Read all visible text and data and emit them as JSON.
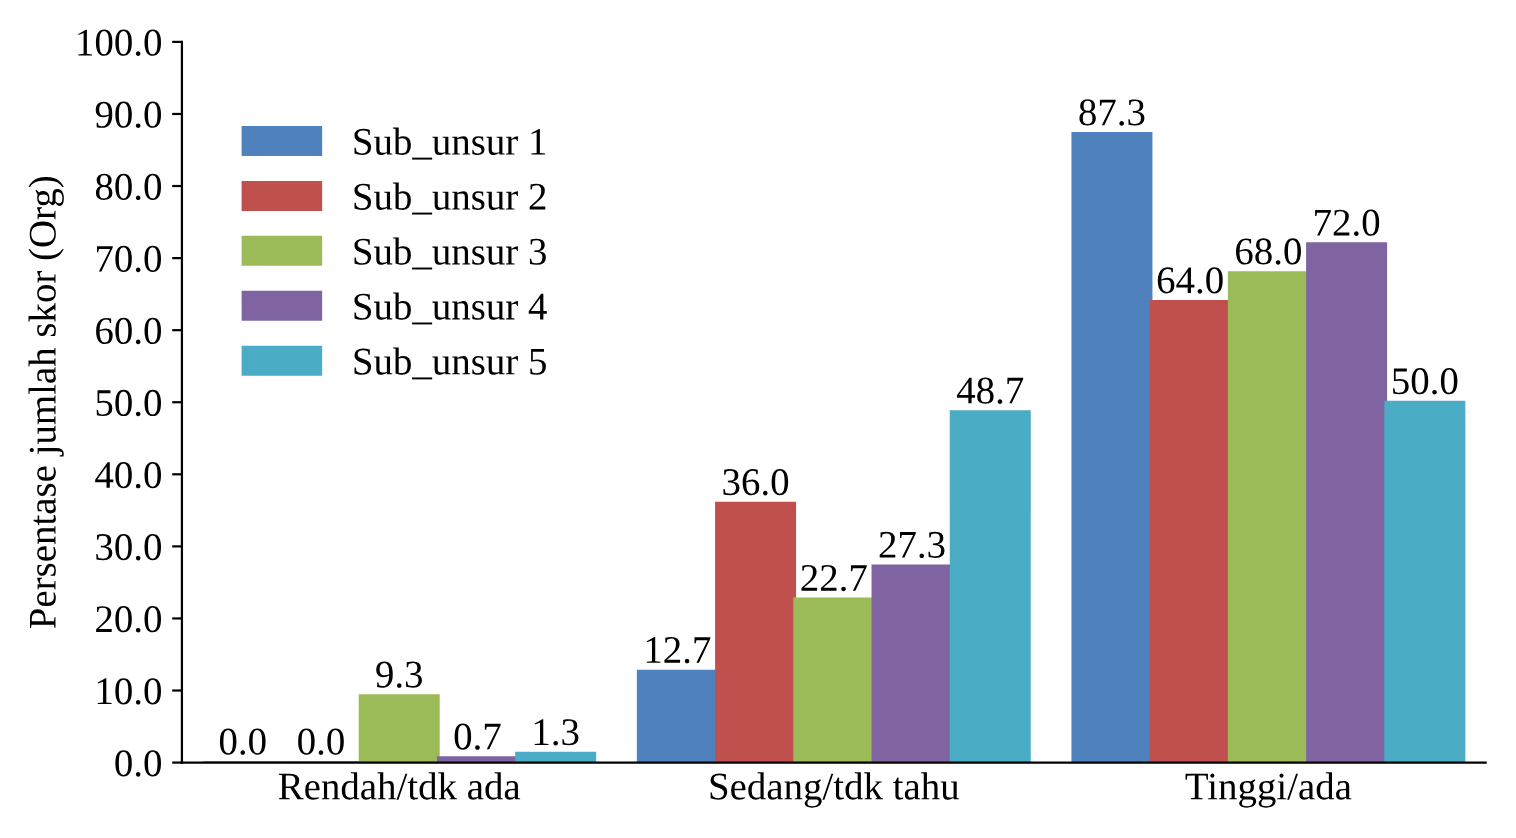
{
  "chart_data": {
    "type": "bar",
    "ylabel": "Persentase jumlah skor (Org)",
    "categories": [
      "Rendah/tdk ada",
      "Sedang/tdk tahu",
      "Tinggi/ada"
    ],
    "series": [
      {
        "name": "Sub_unsur 1",
        "color": "#4f81bd",
        "values": [
          0.0,
          12.7,
          87.3
        ],
        "value_labels": [
          "0.0",
          "12.7",
          "87.3"
        ]
      },
      {
        "name": "Sub_unsur 2",
        "color": "#c0504d",
        "values": [
          0.0,
          36.0,
          64.0
        ],
        "value_labels": [
          "0.0",
          "36.0",
          "64.0"
        ]
      },
      {
        "name": "Sub_unsur 3",
        "color": "#9bbb59",
        "values": [
          9.3,
          22.7,
          68.0
        ],
        "value_labels": [
          "9.3",
          "22.7",
          "68.0"
        ]
      },
      {
        "name": "Sub_unsur 4",
        "color": "#8064a2",
        "values": [
          0.7,
          27.3,
          72.0
        ],
        "value_labels": [
          "0.7",
          "27.3",
          "72.0"
        ]
      },
      {
        "name": "Sub_unsur 5",
        "color": "#4bacc6",
        "values": [
          1.3,
          48.7,
          50.0
        ],
        "value_labels": [
          "1.3",
          "48.7",
          "50.0"
        ]
      }
    ],
    "ylim": [
      0,
      100
    ],
    "yticks": [
      {
        "value": 0,
        "label": "0.0"
      },
      {
        "value": 10,
        "label": "10.0"
      },
      {
        "value": 20,
        "label": "20.0"
      },
      {
        "value": 30,
        "label": "30.0"
      },
      {
        "value": 40,
        "label": "40.0"
      },
      {
        "value": 50,
        "label": "50.0"
      },
      {
        "value": 60,
        "label": "60.0"
      },
      {
        "value": 70,
        "label": "70.0"
      },
      {
        "value": 80,
        "label": "80.0"
      },
      {
        "value": 90,
        "label": "90.0"
      },
      {
        "value": 100,
        "label": "100.0"
      }
    ],
    "grid": false,
    "legend": "top left"
  }
}
